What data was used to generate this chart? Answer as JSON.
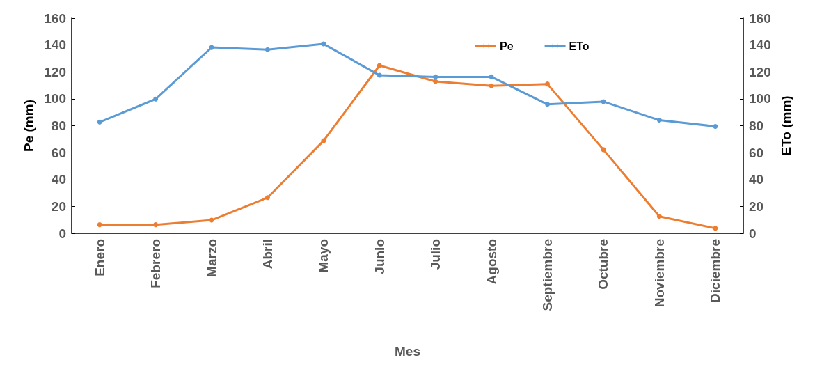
{
  "chart_data": {
    "type": "line",
    "xlabel": "Mes",
    "ylabel": "Pe (mm)",
    "y2label": "ETo (mm)",
    "categories": [
      "Enero",
      "Febrero",
      "Marzo",
      "Abril",
      "Mayo",
      "Junio",
      "Julio",
      "Agosto",
      "Septiembre",
      "Octubre",
      "Noviembre",
      "Diciembre"
    ],
    "series": [
      {
        "name": "Pe",
        "color": "#ed7d31",
        "values": [
          6.4,
          6.4,
          9.8,
          26.5,
          68.8,
          124.8,
          112.9,
          109.6,
          111,
          62.2,
          12.6,
          3.7
        ]
      },
      {
        "name": "ETo",
        "color": "#5b9bd5",
        "axis": "y2",
        "values": [
          82.7,
          99.8,
          138.2,
          136.6,
          140.8,
          117.5,
          116.3,
          116.3,
          95.9,
          97.9,
          84.1,
          79.5
        ]
      }
    ],
    "ylim": [
      0,
      160
    ],
    "yticks": [
      0,
      20,
      40,
      60,
      80,
      100,
      120,
      140,
      160
    ],
    "y2lim": [
      0,
      160
    ],
    "y2ticks": [
      0,
      20,
      40,
      60,
      80,
      100,
      120,
      140,
      160
    ],
    "grid": false,
    "legend": "top",
    "marker": "circle",
    "line_style": "solid"
  }
}
